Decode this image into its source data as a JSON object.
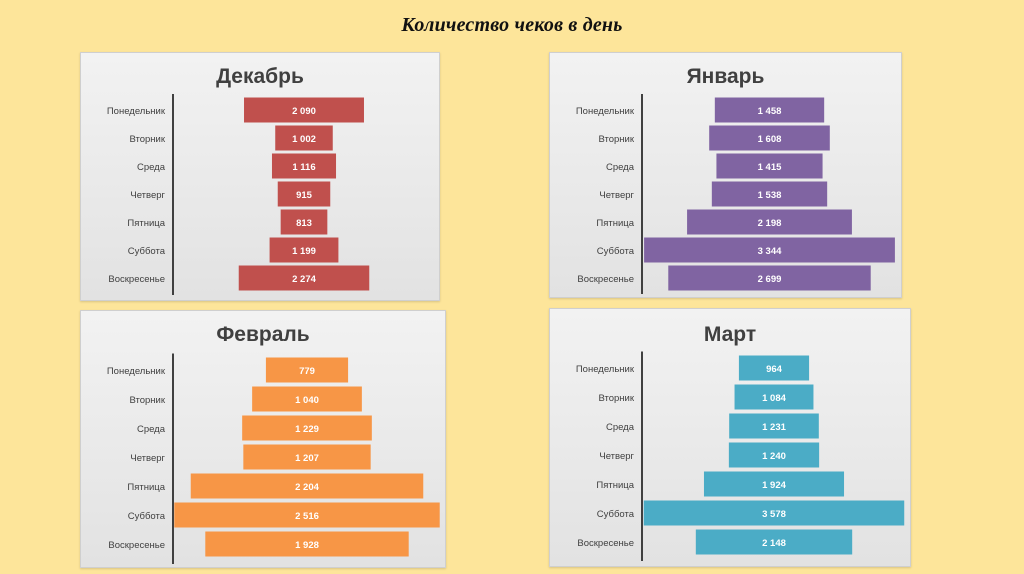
{
  "slide": {
    "title": "Количество чеков в день"
  },
  "chart_data": [
    {
      "type": "bar",
      "orientation": "horizontal-centered",
      "title": "Декабрь",
      "color": "#c0504d",
      "categories": [
        "Понедельник",
        "Вторник",
        "Среда",
        "Четверг",
        "Пятница",
        "Суббота",
        "Воскресенье"
      ],
      "values": [
        2090,
        1002,
        1116,
        915,
        813,
        1199,
        2274
      ],
      "labels": [
        "2 090",
        "1 002",
        "1 116",
        "915",
        "813",
        "1 199",
        "2 274"
      ]
    },
    {
      "type": "bar",
      "orientation": "horizontal-centered",
      "title": "Январь",
      "color": "#8064a2",
      "categories": [
        "Понедельник",
        "Вторник",
        "Среда",
        "Четверг",
        "Пятница",
        "Суббота",
        "Воскресенье"
      ],
      "values": [
        1458,
        1608,
        1415,
        1538,
        2198,
        3344,
        2699
      ],
      "labels": [
        "1 458",
        "1 608",
        "1 415",
        "1 538",
        "2 198",
        "3 344",
        "2 699"
      ]
    },
    {
      "type": "bar",
      "orientation": "horizontal-centered",
      "title": "Февраль",
      "color": "#f79646",
      "categories": [
        "Понедельник",
        "Вторник",
        "Среда",
        "Четверг",
        "Пятница",
        "Суббота",
        "Воскресенье"
      ],
      "values": [
        779,
        1040,
        1229,
        1207,
        2204,
        2516,
        1928
      ],
      "labels": [
        "779",
        "1 040",
        "1 229",
        "1 207",
        "2 204",
        "2 516",
        "1 928"
      ]
    },
    {
      "type": "bar",
      "orientation": "horizontal-centered",
      "title": "Март",
      "color": "#4bacc6",
      "categories": [
        "Понедельник",
        "Вторник",
        "Среда",
        "Четверг",
        "Пятница",
        "Суббота",
        "Воскресенье"
      ],
      "values": [
        964,
        1084,
        1231,
        1240,
        1924,
        3578,
        2148
      ],
      "labels": [
        "964",
        "1 084",
        "1 231",
        "1 240",
        "1 924",
        "3 578",
        "2 148"
      ]
    }
  ]
}
